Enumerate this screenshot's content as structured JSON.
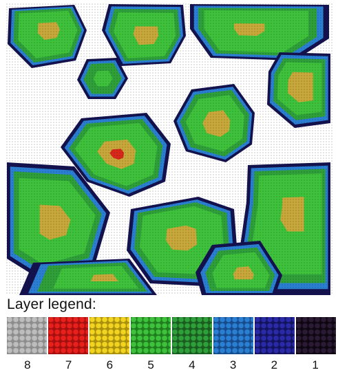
{
  "legend": {
    "title": "Layer legend:",
    "layers": [
      {
        "label": "8",
        "color": "#bdbdbd",
        "dot": "#8c8c8c"
      },
      {
        "label": "7",
        "color": "#e8201c",
        "dot": "#a40f0f"
      },
      {
        "label": "6",
        "color": "#f1d320",
        "dot": "#a8900c"
      },
      {
        "label": "5",
        "color": "#3fc23b",
        "dot": "#1f7d1f"
      },
      {
        "label": "4",
        "color": "#2f9f3a",
        "dot": "#1a5c20"
      },
      {
        "label": "3",
        "color": "#2b7fd3",
        "dot": "#164c8c"
      },
      {
        "label": "2",
        "color": "#2a2aa8",
        "dot": "#13135e"
      },
      {
        "label": "1",
        "color": "#2a1a33",
        "dot": "#0e0611"
      }
    ]
  },
  "colors": {
    "background": "#ffffff",
    "outline": "#14124e",
    "layer_yellow": "#c8a83a",
    "layer_red": "#d7281c"
  }
}
